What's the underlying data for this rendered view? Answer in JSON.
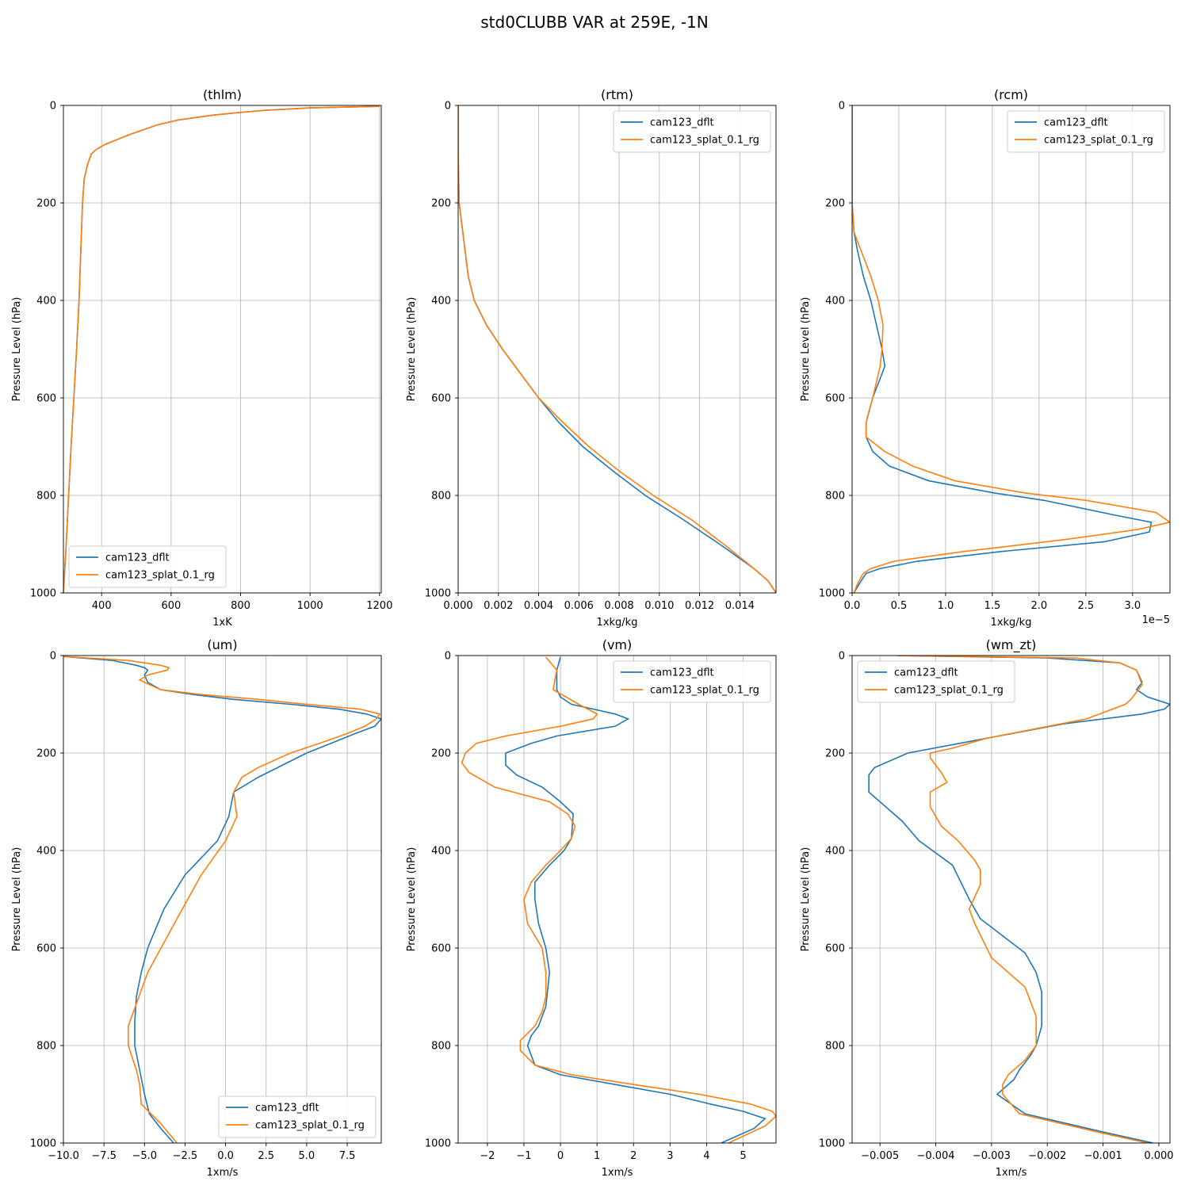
{
  "suptitle": "std0CLUBB VAR at 259E, -1N",
  "colors": {
    "dflt": "#1f77b4",
    "splat": "#ff7f0e",
    "grid": "#b0b0b0"
  },
  "chart_data": [
    {
      "type": "line",
      "title": "(thlm)",
      "xlabel": "1xK",
      "ylabel": "Pressure Level (hPa)",
      "xlim": [
        290,
        1205
      ],
      "ylim": [
        1000,
        0
      ],
      "xticks": [
        400,
        600,
        800,
        1000,
        1200
      ],
      "xtick_labels": [
        "400",
        "600",
        "800",
        "1000",
        "1200"
      ],
      "yticks": [
        0,
        200,
        400,
        600,
        800,
        1000
      ],
      "ytick_labels": [
        "0",
        "200",
        "400",
        "600",
        "800",
        "1000"
      ],
      "offset_text": "",
      "grid": true,
      "legend": {
        "placement": "lower-left"
      },
      "series": [
        {
          "name": "cam123_dflt",
          "color": "#1f77b4",
          "p": [
            2,
            5,
            10,
            15,
            20,
            30,
            40,
            50,
            60,
            70,
            80,
            90,
            100,
            120,
            150,
            200,
            300,
            400,
            500,
            600,
            700,
            800,
            900,
            950,
            1000
          ],
          "x": [
            1200,
            1000,
            870,
            790,
            720,
            620,
            560,
            520,
            480,
            445,
            410,
            385,
            370,
            360,
            350,
            345,
            340,
            335,
            328,
            320,
            312,
            305,
            298,
            294,
            290
          ]
        },
        {
          "name": "cam123_splat_0.1_rg",
          "color": "#ff7f0e",
          "p": [
            2,
            5,
            10,
            15,
            20,
            30,
            40,
            50,
            60,
            70,
            80,
            90,
            100,
            120,
            150,
            200,
            300,
            400,
            500,
            600,
            700,
            800,
            900,
            950,
            1000
          ],
          "x": [
            1200,
            1000,
            870,
            790,
            720,
            620,
            560,
            520,
            480,
            445,
            410,
            385,
            370,
            360,
            350,
            345,
            340,
            335,
            328,
            320,
            312,
            305,
            298,
            294,
            290
          ]
        }
      ]
    },
    {
      "type": "line",
      "title": "(rtm)",
      "xlabel": "1xkg/kg",
      "ylabel": "Pressure Level (hPa)",
      "xlim": [
        0,
        0.0158
      ],
      "ylim": [
        1000,
        0
      ],
      "xticks": [
        0,
        0.002,
        0.004,
        0.006,
        0.008,
        0.01,
        0.012,
        0.014
      ],
      "xtick_labels": [
        "0.000",
        "0.002",
        "0.004",
        "0.006",
        "0.008",
        "0.010",
        "0.012",
        "0.014"
      ],
      "yticks": [
        0,
        200,
        400,
        600,
        800,
        1000
      ],
      "ytick_labels": [
        "0",
        "200",
        "400",
        "600",
        "800",
        "1000"
      ],
      "offset_text": "",
      "grid": true,
      "legend": {
        "placement": "upper-right"
      },
      "series": [
        {
          "name": "cam123_dflt",
          "color": "#1f77b4",
          "p": [
            0,
            100,
            200,
            250,
            300,
            350,
            400,
            450,
            500,
            550,
            600,
            650,
            700,
            750,
            800,
            850,
            900,
            950,
            975,
            1000
          ],
          "x": [
            0,
            0,
            5e-05,
            0.0002,
            0.00035,
            0.0005,
            0.0008,
            0.0014,
            0.0022,
            0.0031,
            0.004,
            0.005,
            0.0062,
            0.0077,
            0.0093,
            0.0112,
            0.013,
            0.0147,
            0.0154,
            0.0158
          ]
        },
        {
          "name": "cam123_splat_0.1_rg",
          "color": "#ff7f0e",
          "p": [
            0,
            100,
            200,
            250,
            300,
            350,
            400,
            450,
            500,
            550,
            600,
            650,
            700,
            750,
            800,
            850,
            900,
            950,
            975,
            1000
          ],
          "x": [
            0,
            0,
            5e-05,
            0.0002,
            0.00035,
            0.0005,
            0.0008,
            0.0014,
            0.0022,
            0.0031,
            0.004,
            0.0052,
            0.0065,
            0.008,
            0.0097,
            0.0116,
            0.0132,
            0.0147,
            0.0154,
            0.0158
          ]
        }
      ]
    },
    {
      "type": "line",
      "title": "(rcm)",
      "xlabel": "1xkg/kg",
      "ylabel": "Pressure Level (hPa)",
      "xlim": [
        0,
        3.4
      ],
      "ylim": [
        1000,
        0
      ],
      "xticks": [
        0,
        0.5,
        1.0,
        1.5,
        2.0,
        2.5,
        3.0
      ],
      "xtick_labels": [
        "0.0",
        "0.5",
        "1.0",
        "1.5",
        "2.0",
        "2.5",
        "3.0"
      ],
      "yticks": [
        0,
        200,
        400,
        600,
        800,
        1000
      ],
      "ytick_labels": [
        "0",
        "200",
        "400",
        "600",
        "800",
        "1000"
      ],
      "offset_text": "1e−5",
      "grid": true,
      "legend": {
        "placement": "upper-right"
      },
      "series": [
        {
          "name": "cam123_dflt",
          "color": "#1f77b4",
          "p": [
            0,
            200,
            260,
            300,
            350,
            400,
            450,
            500,
            535,
            600,
            650,
            680,
            710,
            740,
            770,
            795,
            810,
            840,
            855,
            875,
            895,
            915,
            935,
            950,
            960,
            980,
            1000
          ],
          "x": [
            0,
            0,
            0.02,
            0.06,
            0.12,
            0.2,
            0.26,
            0.32,
            0.35,
            0.22,
            0.15,
            0.15,
            0.22,
            0.4,
            0.82,
            1.52,
            2.05,
            2.8,
            3.2,
            3.18,
            2.7,
            1.6,
            0.7,
            0.3,
            0.15,
            0.08,
            0.02
          ]
        },
        {
          "name": "cam123_splat_0.1_rg",
          "color": "#ff7f0e",
          "p": [
            0,
            200,
            260,
            300,
            350,
            400,
            450,
            500,
            535,
            600,
            650,
            680,
            710,
            740,
            770,
            795,
            810,
            835,
            855,
            870,
            890,
            915,
            935,
            950,
            960,
            980,
            1000
          ],
          "x": [
            0,
            0,
            0.02,
            0.1,
            0.2,
            0.28,
            0.33,
            0.32,
            0.3,
            0.22,
            0.15,
            0.15,
            0.35,
            0.65,
            1.1,
            1.85,
            2.5,
            3.25,
            3.4,
            3.05,
            2.3,
            1.2,
            0.45,
            0.2,
            0.12,
            0.06,
            0.02
          ]
        }
      ]
    },
    {
      "type": "line",
      "title": "(um)",
      "xlabel": "1xm/s",
      "ylabel": "Pressure Level (hPa)",
      "xlim": [
        -10,
        9.6
      ],
      "ylim": [
        1000,
        0
      ],
      "xticks": [
        -10,
        -7.5,
        -5,
        -2.5,
        0,
        2.5,
        5,
        7.5
      ],
      "xtick_labels": [
        "−10.0",
        "−7.5",
        "−5.0",
        "−2.5",
        "0.0",
        "2.5",
        "5.0",
        "7.5"
      ],
      "yticks": [
        0,
        200,
        400,
        600,
        800,
        1000
      ],
      "ytick_labels": [
        "0",
        "200",
        "400",
        "600",
        "800",
        "1000"
      ],
      "offset_text": "",
      "grid": true,
      "legend": {
        "placement": "lower-right"
      },
      "series": [
        {
          "name": "cam123_dflt",
          "color": "#1f77b4",
          "p": [
            2,
            10,
            20,
            25,
            30,
            40,
            55,
            70,
            80,
            90,
            100,
            110,
            120,
            130,
            145,
            160,
            180,
            200,
            225,
            250,
            280,
            330,
            380,
            450,
            520,
            600,
            650,
            700,
            750,
            800,
            850,
            900,
            940,
            970,
            1000
          ],
          "x": [
            -10,
            -7,
            -5.5,
            -5,
            -4.8,
            -5,
            -4.8,
            -4,
            -2,
            0.5,
            4,
            7,
            8.7,
            9.6,
            9.2,
            8,
            6.5,
            5,
            3.5,
            2,
            0.5,
            0.2,
            -0.5,
            -2.5,
            -3.8,
            -4.8,
            -5.2,
            -5.5,
            -5.6,
            -5.6,
            -5.3,
            -5,
            -4.7,
            -4,
            -3.2
          ]
        },
        {
          "name": "cam123_splat_0.1_rg",
          "color": "#ff7f0e",
          "p": [
            2,
            10,
            20,
            25,
            30,
            40,
            50,
            55,
            70,
            80,
            90,
            100,
            110,
            120,
            130,
            145,
            160,
            180,
            200,
            230,
            250,
            280,
            330,
            380,
            450,
            540,
            650,
            760,
            800,
            850,
            880,
            920,
            960,
            1000
          ],
          "x": [
            -10,
            -6,
            -4,
            -3.5,
            -3.6,
            -4.8,
            -5.3,
            -5,
            -4,
            -1.5,
            2,
            5,
            8.3,
            9.5,
            9.3,
            8.6,
            7.5,
            5.8,
            4,
            2,
            1,
            0.5,
            0.7,
            0,
            -1.5,
            -3,
            -4.8,
            -6,
            -6,
            -5.5,
            -5.3,
            -5.2,
            -4,
            -3
          ]
        }
      ]
    },
    {
      "type": "line",
      "title": "(vm)",
      "xlabel": "1xm/s",
      "ylabel": "Pressure Level (hPa)",
      "xlim": [
        -2.8,
        5.9
      ],
      "ylim": [
        1000,
        0
      ],
      "xticks": [
        -2,
        -1,
        0,
        1,
        2,
        3,
        4,
        5
      ],
      "xtick_labels": [
        "−2",
        "−1",
        "0",
        "1",
        "2",
        "3",
        "4",
        "5"
      ],
      "yticks": [
        0,
        200,
        400,
        600,
        800,
        1000
      ],
      "ytick_labels": [
        "0",
        "200",
        "400",
        "600",
        "800",
        "1000"
      ],
      "offset_text": "",
      "grid": true,
      "legend": {
        "placement": "upper-right"
      },
      "series": [
        {
          "name": "cam123_dflt",
          "color": "#1f77b4",
          "p": [
            3,
            30,
            70,
            85,
            100,
            120,
            130,
            145,
            165,
            180,
            200,
            210,
            225,
            245,
            270,
            300,
            325,
            375,
            400,
            430,
            465,
            500,
            550,
            600,
            650,
            685,
            720,
            760,
            780,
            800,
            840,
            860,
            880,
            900,
            920,
            935,
            950,
            970,
            1000
          ],
          "x": [
            0,
            -0.1,
            -0.1,
            0,
            0.3,
            1.5,
            1.85,
            1.5,
            -0.1,
            -0.8,
            -1.5,
            -1.5,
            -1.5,
            -1.2,
            -0.5,
            0,
            0.35,
            0.3,
            0.1,
            -0.3,
            -0.7,
            -0.7,
            -0.6,
            -0.4,
            -0.3,
            -0.35,
            -0.4,
            -0.6,
            -0.8,
            -0.9,
            -0.7,
            0,
            1.5,
            3,
            4.1,
            5,
            5.6,
            5.3,
            4.4
          ]
        },
        {
          "name": "cam123_splat_0.1_rg",
          "color": "#ff7f0e",
          "p": [
            3,
            30,
            70,
            100,
            120,
            130,
            145,
            165,
            180,
            200,
            220,
            240,
            270,
            300,
            325,
            350,
            375,
            400,
            430,
            465,
            500,
            550,
            600,
            650,
            700,
            730,
            760,
            790,
            810,
            840,
            860,
            880,
            900,
            920,
            935,
            945,
            965,
            1000
          ],
          "x": [
            -0.4,
            -0.1,
            -0.2,
            0.5,
            1,
            0.9,
            0,
            -1.5,
            -2.3,
            -2.6,
            -2.7,
            -2.5,
            -1.8,
            -0.3,
            0.2,
            0.4,
            0.3,
            0,
            -0.4,
            -0.8,
            -1,
            -0.9,
            -0.5,
            -0.4,
            -0.4,
            -0.5,
            -0.7,
            -1.1,
            -1.1,
            -0.7,
            0.3,
            2,
            3.8,
            5.2,
            5.8,
            5.9,
            5.6,
            4.6
          ]
        }
      ]
    },
    {
      "type": "line",
      "title": "(wm_zt)",
      "xlabel": "1xm/s",
      "ylabel": "Pressure Level (hPa)",
      "xlim": [
        -0.0055,
        0.0002
      ],
      "ylim": [
        1000,
        0
      ],
      "xticks": [
        -0.005,
        -0.004,
        -0.003,
        -0.002,
        -0.001,
        0
      ],
      "xtick_labels": [
        "−0.005",
        "−0.004",
        "−0.003",
        "−0.002",
        "−0.001",
        "0.000"
      ],
      "yticks": [
        0,
        200,
        400,
        600,
        800,
        1000
      ],
      "ytick_labels": [
        "0",
        "200",
        "400",
        "600",
        "800",
        "1000"
      ],
      "offset_text": "",
      "grid": true,
      "legend": {
        "placement": "upper-left"
      },
      "series": [
        {
          "name": "cam123_dflt",
          "color": "#1f77b4",
          "p": [
            0,
            5,
            15,
            30,
            55,
            70,
            85,
            100,
            110,
            120,
            140,
            170,
            200,
            230,
            245,
            260,
            280,
            300,
            340,
            380,
            430,
            500,
            540,
            610,
            650,
            690,
            760,
            800,
            820,
            850,
            870,
            900,
            940,
            980,
            1000
          ],
          "x": [
            -0.0047,
            -0.002,
            -0.0007,
            -0.0004,
            -0.0003,
            -0.0004,
            -0.0002,
            0.0002,
            0.0001,
            -0.0003,
            -0.0017,
            -0.0031,
            -0.0045,
            -0.0051,
            -0.0052,
            -0.0052,
            -0.0052,
            -0.005,
            -0.0046,
            -0.0043,
            -0.0037,
            -0.0034,
            -0.0032,
            -0.0024,
            -0.0022,
            -0.0021,
            -0.0021,
            -0.0022,
            -0.0023,
            -0.0025,
            -0.0026,
            -0.0029,
            -0.0024,
            -0.0009,
            -0.0001
          ]
        },
        {
          "name": "cam123_splat_0.1_rg",
          "color": "#ff7f0e",
          "p": [
            0,
            5,
            15,
            30,
            60,
            90,
            100,
            130,
            170,
            190,
            200,
            210,
            240,
            260,
            280,
            310,
            330,
            350,
            380,
            420,
            440,
            470,
            520,
            550,
            620,
            680,
            740,
            800,
            830,
            860,
            880,
            900,
            940,
            980,
            1000
          ],
          "x": [
            -0.0047,
            -0.0015,
            -0.0007,
            -0.0004,
            -0.0003,
            -0.0005,
            -0.0006,
            -0.0013,
            -0.0031,
            -0.0037,
            -0.0041,
            -0.0041,
            -0.0039,
            -0.0038,
            -0.0041,
            -0.0041,
            -0.004,
            -0.0039,
            -0.0036,
            -0.0033,
            -0.0032,
            -0.0032,
            -0.0034,
            -0.0033,
            -0.003,
            -0.0024,
            -0.0022,
            -0.0022,
            -0.0024,
            -0.0027,
            -0.0028,
            -0.0028,
            -0.0025,
            -0.001,
            -0.0002
          ]
        }
      ]
    }
  ]
}
